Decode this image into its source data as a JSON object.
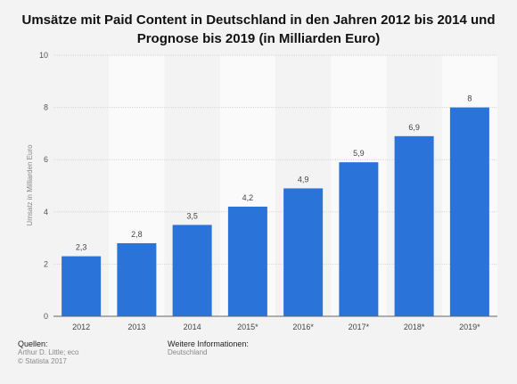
{
  "chart_data": {
    "type": "bar",
    "title": "Umsätze mit Paid Content in Deutschland in den Jahren 2012 bis 2014 und Prognose bis 2019 (in Milliarden Euro)",
    "categories": [
      "2012",
      "2013",
      "2014",
      "2015*",
      "2016*",
      "2017*",
      "2018*",
      "2019*"
    ],
    "values": [
      2.3,
      2.8,
      3.5,
      4.2,
      4.9,
      5.9,
      6.9,
      8
    ],
    "value_labels": [
      "2,3",
      "2,8",
      "3,5",
      "4,2",
      "4,9",
      "5,9",
      "6,9",
      "8"
    ],
    "xlabel": "",
    "ylabel": "Umsatz in Milliarden Euro",
    "ylim": [
      0,
      10
    ],
    "yticks": [
      0,
      2,
      4,
      6,
      8,
      10
    ],
    "grid": true,
    "bar_color": "#2a73d9"
  },
  "footer": {
    "sources_label": "Quellen:",
    "sources_line1": "Arthur D. Little; eco",
    "sources_line2": "© Statista 2017",
    "info_label": "Weitere Informationen:",
    "info_value": "Deutschland"
  }
}
